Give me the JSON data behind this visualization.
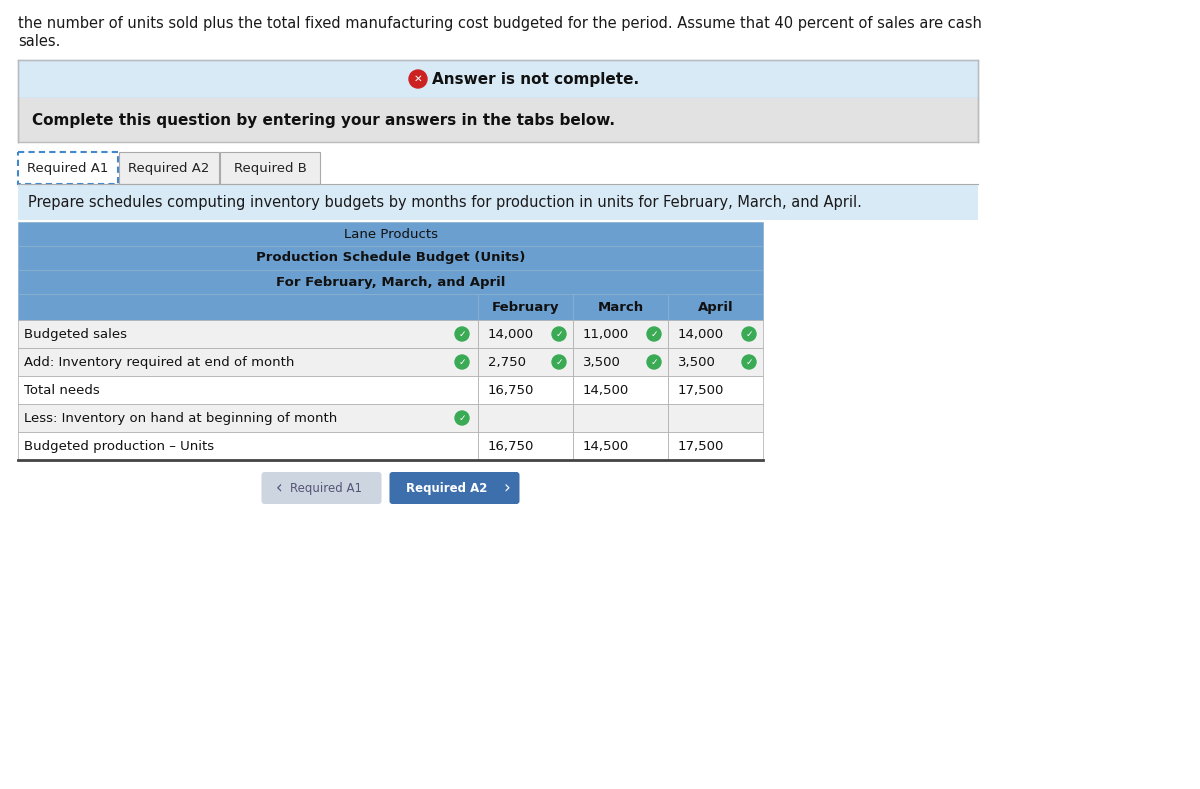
{
  "header_text_line1": "the number of units sold plus the total fixed manufacturing cost budgeted for the period. Assume that 40 percent of sales are cash",
  "header_text_line2": "sales.",
  "answer_incomplete_text": "Answer is not complete.",
  "complete_question_text": "Complete this question by entering your answers in the tabs below.",
  "tabs": [
    "Required A1",
    "Required A2",
    "Required B"
  ],
  "prepare_text": "Prepare schedules computing inventory budgets by months for production in units for February, March, and April.",
  "table_title1": "Lane Products",
  "table_title2": "Production Schedule Budget (Units)",
  "table_title3": "For February, March, and April",
  "col_headers": [
    "February",
    "March",
    "April"
  ],
  "row_labels": [
    "Budgeted sales",
    "Add: Inventory required at end of month",
    "Total needs",
    "Less: Inventory on hand at beginning of month",
    "Budgeted production – Units"
  ],
  "values": [
    [
      "14,000",
      "11,000",
      "14,000"
    ],
    [
      "2,750",
      "3,500",
      "3,500"
    ],
    [
      "16,750",
      "14,500",
      "17,500"
    ],
    [
      null,
      null,
      null
    ],
    [
      "16,750",
      "14,500",
      "17,500"
    ]
  ],
  "green_checks_label": [
    true,
    true,
    false,
    true,
    false
  ],
  "green_checks_vals": [
    [
      true,
      true,
      true
    ],
    [
      true,
      true,
      true
    ],
    [
      false,
      false,
      false
    ],
    [
      false,
      false,
      false
    ],
    [
      false,
      false,
      false
    ]
  ],
  "table_header_bg": "#6b9fcf",
  "table_col_header_bg": "#6b9fcf",
  "row_bgs": [
    "#f0f0f0",
    "#f0f0f0",
    "#ffffff",
    "#f0f0f0",
    "#ffffff"
  ],
  "answer_bar_bg": "#d9eaf7",
  "answer_bar_border": "#b0cce0",
  "complete_bar_bg": "#e2e2e2",
  "prepare_bar_bg": "#d9eaf7",
  "btn_req_a1_bg": "#cdd5e0",
  "btn_req_a2_bg": "#3d6fad",
  "outer_border": "#bbbbbb",
  "tab_active_border": "#4488cc",
  "tab_active_bg": "#ffffff",
  "tab_inactive_bg": "#eeeeee",
  "tab_inactive_border": "#aaaaaa"
}
